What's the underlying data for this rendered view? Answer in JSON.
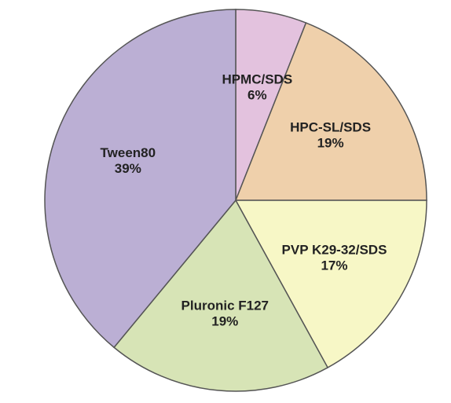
{
  "chart_data": {
    "type": "pie",
    "categories": [
      "HPMC/SDS",
      "HPC-SL/SDS",
      "PVP K29-32/SDS",
      "Pluronic F127",
      "Tween80"
    ],
    "values": [
      6,
      19,
      17,
      19,
      39
    ],
    "value_labels": [
      "6%",
      "19%",
      "17%",
      "19%",
      "39%"
    ],
    "colors": [
      "#e3c2de",
      "#efd0ab",
      "#f7f7c6",
      "#d7e4b6",
      "#bbafd4"
    ]
  }
}
